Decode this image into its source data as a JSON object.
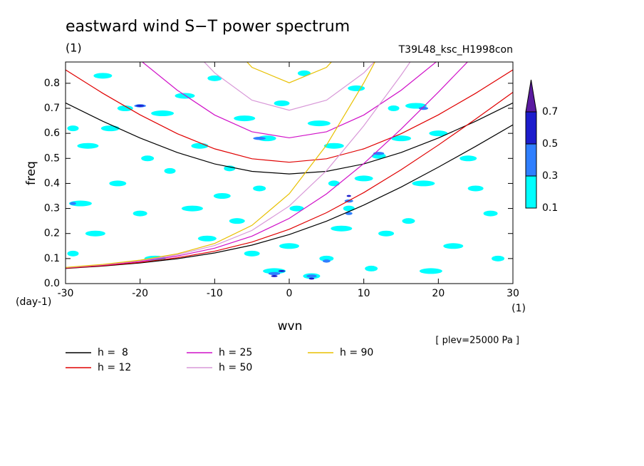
{
  "chart_data": {
    "type": "contour",
    "title": "eastward wind S−T power spectrum",
    "subtitle": "(1)",
    "run_label": "T39L48_ksc_H1998con",
    "ylabel": "freq",
    "ylabel_unit": "(day-1)",
    "xlabel": "wvn",
    "xlabel_unit": "(1)",
    "note": "[ plev=25000 Pa ]",
    "xlim": [
      -30,
      30
    ],
    "ylim": [
      0,
      0.885
    ],
    "xticks": [
      -30,
      -20,
      -10,
      0,
      10,
      20,
      30
    ],
    "yticks": [
      {
        "value": 0,
        "label": "0.0"
      },
      0.1,
      0.2,
      0.3,
      0.4,
      0.5,
      0.6,
      0.7,
      0.8
    ],
    "x": [
      -30,
      -25,
      -20,
      -15,
      -10,
      -5,
      0,
      5,
      10,
      15,
      20,
      25,
      30
    ],
    "series": [
      {
        "name": "h =  8",
        "color": "#000000",
        "mrg": [
          0.0605,
          0.07,
          0.0825,
          0.0993,
          0.1223,
          0.1537,
          0.1958,
          0.2493,
          0.3135,
          0.3855,
          0.4649,
          0.548,
          0.6341
        ],
        "ig": [
          0.7216,
          0.6482,
          0.5813,
          0.5234,
          0.4778,
          0.4482,
          0.4378,
          0.4482,
          0.4778,
          0.5234,
          0.5813,
          0.6482,
          0.7216
        ]
      },
      {
        "name": "h = 12",
        "color": "#e00000",
        "mrg": [
          0.0615,
          0.0715,
          0.0849,
          0.1033,
          0.1292,
          0.166,
          0.2167,
          0.2831,
          0.3634,
          0.4547,
          0.5533,
          0.6571,
          0.7641
        ],
        "ig": [
          0.8535,
          0.76,
          0.6739,
          0.5985,
          0.5382,
          0.4985,
          0.4846,
          0.4985,
          0.5382,
          0.5985,
          0.6739,
          0.76,
          0.8535
        ]
      },
      {
        "name": "h = 25",
        "color": "#d010c8",
        "mrg": [
          0.0629,
          0.0738,
          0.0886,
          0.1099,
          0.1414,
          0.1893,
          0.2604,
          0.3583,
          0.4794,
          0.6169,
          0.7646,
          0.9188,
          1.0769
        ],
        "ig": [
          1.1692,
          1.0262,
          0.8922,
          0.772,
          0.6732,
          0.6063,
          0.5822,
          0.6063,
          0.6732,
          0.772,
          0.8922,
          1.0262,
          1.1692
        ]
      },
      {
        "name": "h = 50",
        "color": "#d898d8",
        "mrg": [
          0.0639,
          0.0755,
          0.0915,
          0.1152,
          0.1521,
          0.2123,
          0.3096,
          0.4513,
          0.6303,
          0.8324,
          1.0477,
          1.2707,
          1.4983
        ],
        "ig": [
          1.5926,
          1.3813,
          1.1806,
          0.9968,
          0.8414,
          0.7325,
          0.6923,
          0.7325,
          0.8414,
          0.9968,
          1.1806,
          1.3813,
          1.5926
        ]
      },
      {
        "name": "h = 90",
        "color": "#e8c000",
        "mrg": [
          0.0646,
          0.0766,
          0.0935,
          0.1189,
          0.1603,
          0.2325,
          0.3586,
          0.5531,
          0.8017,
          1.0809,
          1.3761,
          1.6798,
          1.9886
        ],
        "ig": [
          2.0845,
          1.7928,
          1.5126,
          1.2524,
          1.0268,
          0.8636,
          0.8019,
          0.8636,
          1.0268,
          1.2524,
          1.5126,
          1.7928,
          2.0845
        ]
      }
    ],
    "colorbar": {
      "levels": [
        0.1,
        0.3,
        0.5,
        0.7
      ],
      "colors": [
        "#00ffff",
        "#2f7fff",
        "#1c1ccc",
        "#5a1aa0"
      ]
    },
    "contour_points": [
      [
        -29,
        0.62,
        0.1
      ],
      [
        -27,
        0.55,
        0.1
      ],
      [
        -25,
        0.83,
        0.1
      ],
      [
        -22,
        0.7,
        0.1
      ],
      [
        -19,
        0.5,
        0.1
      ],
      [
        -17,
        0.68,
        0.1
      ],
      [
        -14,
        0.75,
        0.1
      ],
      [
        -12,
        0.55,
        0.1
      ],
      [
        -10,
        0.82,
        0.1
      ],
      [
        -8,
        0.46,
        0.1
      ],
      [
        -6,
        0.66,
        0.1
      ],
      [
        -3,
        0.58,
        0.1
      ],
      [
        -1,
        0.72,
        0.1
      ],
      [
        2,
        0.84,
        0.1
      ],
      [
        4,
        0.64,
        0.1
      ],
      [
        6,
        0.55,
        0.1
      ],
      [
        9,
        0.78,
        0.1
      ],
      [
        12,
        0.51,
        0.1
      ],
      [
        14,
        0.7,
        0.1
      ],
      [
        17,
        0.71,
        0.1
      ],
      [
        20,
        0.6,
        0.1
      ],
      [
        25,
        0.38,
        0.1
      ],
      [
        28,
        0.1,
        0.1
      ],
      [
        -28,
        0.32,
        0.1
      ],
      [
        -26,
        0.2,
        0.1
      ],
      [
        -23,
        0.4,
        0.1
      ],
      [
        -20,
        0.28,
        0.1
      ],
      [
        -16,
        0.45,
        0.1
      ],
      [
        -13,
        0.3,
        0.1
      ],
      [
        -11,
        0.18,
        0.1
      ],
      [
        -7,
        0.25,
        0.1
      ],
      [
        -4,
        0.38,
        0.1
      ],
      [
        -2,
        0.05,
        0.1
      ],
      [
        0,
        0.15,
        0.1
      ],
      [
        3,
        0.03,
        0.1
      ],
      [
        5,
        0.1,
        0.1
      ],
      [
        8,
        0.3,
        0.1
      ],
      [
        7,
        0.22,
        0.1
      ],
      [
        10,
        0.42,
        0.1
      ],
      [
        13,
        0.2,
        0.1
      ],
      [
        16,
        0.25,
        0.1
      ],
      [
        18,
        0.4,
        0.1
      ],
      [
        22,
        0.15,
        0.1
      ],
      [
        24,
        0.5,
        0.1
      ],
      [
        27,
        0.28,
        0.1
      ],
      [
        -29,
        0.12,
        0.1
      ],
      [
        -18,
        0.1,
        0.1
      ],
      [
        -24,
        0.62,
        0.1
      ],
      [
        -5,
        0.12,
        0.1
      ],
      [
        11,
        0.06,
        0.1
      ],
      [
        19,
        0.05,
        0.1
      ],
      [
        15,
        0.58,
        0.1
      ],
      [
        -9,
        0.35,
        0.1
      ],
      [
        1,
        0.3,
        0.1
      ],
      [
        6,
        0.4,
        0.1
      ],
      [
        -2,
        0.04,
        0.3
      ],
      [
        3,
        0.03,
        0.3
      ],
      [
        8,
        0.33,
        0.3
      ],
      [
        8,
        0.28,
        0.3
      ],
      [
        -4,
        0.58,
        0.3
      ],
      [
        12,
        0.52,
        0.3
      ],
      [
        18,
        0.7,
        0.3
      ],
      [
        5,
        0.09,
        0.3
      ],
      [
        -29,
        0.32,
        0.3
      ],
      [
        -20,
        0.71,
        0.3
      ],
      [
        -2,
        0.03,
        0.5
      ],
      [
        3,
        0.02,
        0.5
      ],
      [
        8,
        0.35,
        0.5
      ],
      [
        -20,
        0.71,
        0.5
      ],
      [
        -1,
        0.05,
        0.5
      ]
    ]
  }
}
